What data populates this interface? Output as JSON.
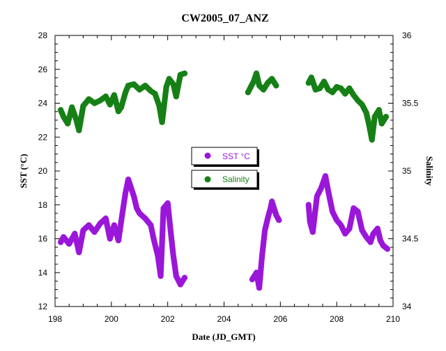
{
  "chart_data": {
    "type": "scatter",
    "title": "CW2005_07_ANZ",
    "xlabel": "Date (JD_GMT)",
    "ylabel_left": "SST (°C)",
    "ylabel_right": "Salinity",
    "xlim": [
      198,
      210
    ],
    "ylim_left": [
      12,
      28
    ],
    "ylim_right": [
      34,
      36
    ],
    "x_ticks": [
      "198",
      "200",
      "202",
      "204",
      "206",
      "208",
      "210"
    ],
    "y_ticks_left": [
      "12",
      "14",
      "16",
      "18",
      "20",
      "22",
      "24",
      "26",
      "28"
    ],
    "y_ticks_right": [
      "34",
      "34.5",
      "35",
      "35.5",
      "36"
    ],
    "grid": false,
    "legend_placement": "center",
    "series": [
      {
        "name": "SST °C",
        "axis": "left",
        "color": "#9a17d9",
        "points": [
          [
            198.2,
            15.8
          ],
          [
            198.3,
            16.1
          ],
          [
            198.5,
            15.7
          ],
          [
            198.7,
            16.3
          ],
          [
            198.85,
            15.2
          ],
          [
            199.0,
            16.5
          ],
          [
            199.2,
            16.8
          ],
          [
            199.4,
            16.4
          ],
          [
            199.6,
            16.9
          ],
          [
            199.8,
            17.2
          ],
          [
            199.95,
            16.0
          ],
          [
            200.1,
            16.8
          ],
          [
            200.25,
            15.9
          ],
          [
            200.4,
            17.6
          ],
          [
            200.5,
            18.7
          ],
          [
            200.6,
            19.5
          ],
          [
            200.7,
            19.0
          ],
          [
            200.8,
            18.5
          ],
          [
            200.9,
            17.8
          ],
          [
            201.0,
            17.5
          ],
          [
            201.2,
            17.2
          ],
          [
            201.4,
            16.8
          ],
          [
            201.5,
            16.0
          ],
          [
            201.65,
            15.0
          ],
          [
            201.75,
            13.8
          ],
          [
            201.85,
            17.8
          ],
          [
            202.0,
            18.1
          ],
          [
            202.1,
            16.5
          ],
          [
            202.2,
            15.0
          ],
          [
            202.3,
            13.8
          ],
          [
            202.45,
            13.3
          ],
          [
            202.6,
            13.7
          ],
          [
            205.0,
            13.6
          ],
          [
            205.15,
            14.0
          ],
          [
            205.25,
            13.1
          ],
          [
            205.35,
            15.0
          ],
          [
            205.45,
            16.5
          ],
          [
            205.55,
            17.2
          ],
          [
            205.65,
            17.8
          ],
          [
            205.7,
            18.2
          ],
          [
            205.85,
            17.4
          ],
          [
            205.95,
            17.1
          ],
          [
            207.0,
            18.0
          ],
          [
            207.05,
            17.0
          ],
          [
            207.15,
            16.4
          ],
          [
            207.3,
            18.5
          ],
          [
            207.45,
            19.0
          ],
          [
            207.6,
            19.7
          ],
          [
            207.7,
            18.8
          ],
          [
            207.85,
            17.6
          ],
          [
            208.0,
            17.1
          ],
          [
            208.15,
            16.8
          ],
          [
            208.3,
            16.3
          ],
          [
            208.45,
            16.6
          ],
          [
            208.6,
            17.8
          ],
          [
            208.75,
            17.6
          ],
          [
            208.9,
            16.5
          ],
          [
            209.05,
            16.1
          ],
          [
            209.2,
            15.8
          ],
          [
            209.3,
            16.3
          ],
          [
            209.45,
            16.6
          ],
          [
            209.55,
            15.9
          ],
          [
            209.65,
            15.6
          ],
          [
            209.8,
            15.4
          ]
        ]
      },
      {
        "name": "Salinity",
        "axis": "right",
        "color": "#168016",
        "points": [
          [
            198.2,
            35.45
          ],
          [
            198.3,
            35.4
          ],
          [
            198.45,
            35.35
          ],
          [
            198.6,
            35.47
          ],
          [
            198.75,
            35.38
          ],
          [
            198.85,
            35.3
          ],
          [
            199.0,
            35.48
          ],
          [
            199.2,
            35.53
          ],
          [
            199.4,
            35.5
          ],
          [
            199.6,
            35.52
          ],
          [
            199.8,
            35.55
          ],
          [
            199.95,
            35.49
          ],
          [
            200.1,
            35.56
          ],
          [
            200.25,
            35.44
          ],
          [
            200.35,
            35.47
          ],
          [
            200.5,
            35.58
          ],
          [
            200.6,
            35.63
          ],
          [
            200.8,
            35.64
          ],
          [
            201.0,
            35.6
          ],
          [
            201.2,
            35.63
          ],
          [
            201.4,
            35.59
          ],
          [
            201.55,
            35.57
          ],
          [
            201.7,
            35.48
          ],
          [
            201.8,
            35.36
          ],
          [
            201.95,
            35.62
          ],
          [
            202.05,
            35.68
          ],
          [
            202.2,
            35.64
          ],
          [
            202.3,
            35.55
          ],
          [
            202.45,
            35.71
          ],
          [
            202.6,
            35.72
          ],
          [
            204.85,
            35.58
          ],
          [
            204.95,
            35.62
          ],
          [
            205.05,
            35.66
          ],
          [
            205.15,
            35.72
          ],
          [
            205.25,
            35.63
          ],
          [
            205.4,
            35.6
          ],
          [
            205.55,
            35.65
          ],
          [
            205.7,
            35.68
          ],
          [
            205.85,
            35.63
          ],
          [
            207.0,
            35.65
          ],
          [
            207.1,
            35.69
          ],
          [
            207.25,
            35.6
          ],
          [
            207.4,
            35.61
          ],
          [
            207.55,
            35.66
          ],
          [
            207.7,
            35.6
          ],
          [
            207.85,
            35.58
          ],
          [
            208.0,
            35.62
          ],
          [
            208.15,
            35.61
          ],
          [
            208.3,
            35.57
          ],
          [
            208.45,
            35.61
          ],
          [
            208.6,
            35.56
          ],
          [
            208.75,
            35.52
          ],
          [
            208.9,
            35.49
          ],
          [
            209.05,
            35.43
          ],
          [
            209.15,
            35.34
          ],
          [
            209.25,
            35.23
          ],
          [
            209.35,
            35.4
          ],
          [
            209.5,
            35.45
          ],
          [
            209.6,
            35.35
          ],
          [
            209.75,
            35.4
          ]
        ]
      }
    ]
  }
}
